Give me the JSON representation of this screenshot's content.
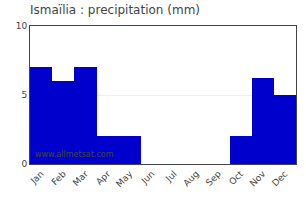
{
  "chart_data": {
    "type": "bar",
    "title": "Ismaïlia : precipitation (mm)",
    "categories": [
      "Jan",
      "Feb",
      "Mar",
      "Apr",
      "May",
      "Jun",
      "Jul",
      "Aug",
      "Sep",
      "Oct",
      "Nov",
      "Dec"
    ],
    "values": [
      7.0,
      6.0,
      7.0,
      2.0,
      2.0,
      0.0,
      0.0,
      0.0,
      0.0,
      2.0,
      6.2,
      5.0
    ],
    "color": "#0000cc",
    "ylim": [
      0,
      10
    ],
    "yticks": [
      0,
      5,
      10
    ],
    "grid": true,
    "annotations": [
      "www.allmetsat.com"
    ]
  }
}
